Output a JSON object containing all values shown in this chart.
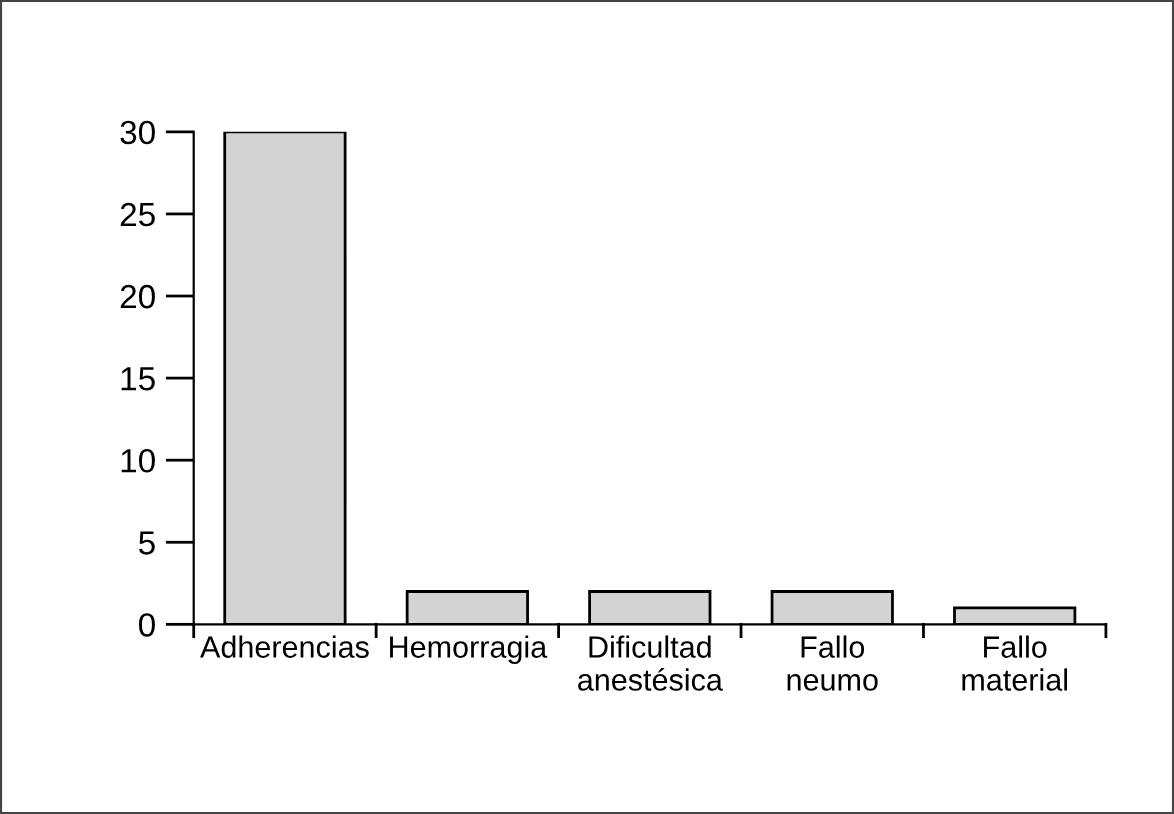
{
  "chart_data": {
    "type": "bar",
    "categories": [
      "Adherencias",
      "Hemorragia",
      "Dificultad\nanestésica",
      "Fallo\nneumo",
      "Fallo\nmaterial"
    ],
    "values": [
      30,
      2,
      2,
      2,
      1
    ],
    "color": "#d3d3d3",
    "ylim": [
      0,
      30
    ],
    "yticks": [
      0,
      5,
      10,
      15,
      20,
      25,
      30
    ],
    "grid": false,
    "legend": false
  }
}
